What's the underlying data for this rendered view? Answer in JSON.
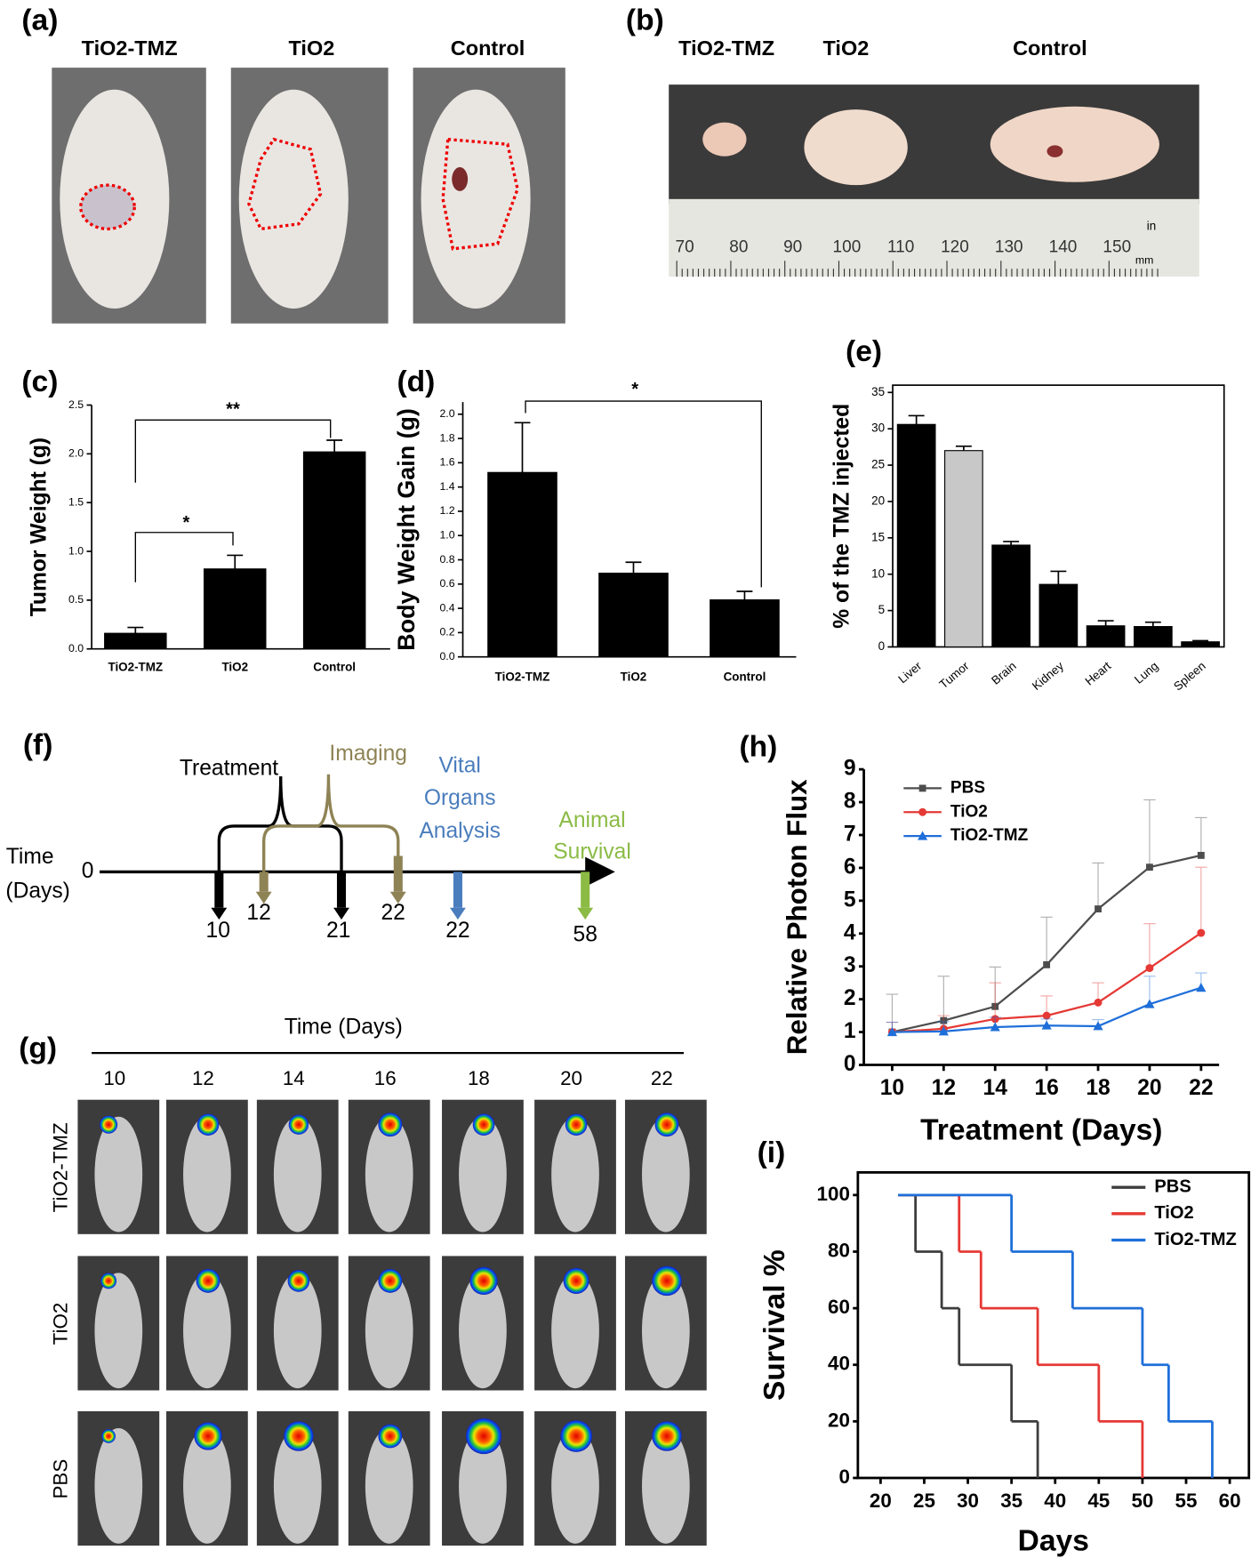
{
  "figure": {
    "a": {
      "label": "(a)",
      "groups": [
        "TiO2-TMZ",
        "TiO2",
        "Control"
      ]
    },
    "b": {
      "label": "(b)",
      "groups": [
        "TiO2-TMZ",
        "TiO2",
        "Control"
      ],
      "ruler_mm": [
        70,
        80,
        90,
        100,
        110,
        120,
        130,
        140,
        150
      ],
      "ruler_units": [
        "in",
        "mm"
      ]
    },
    "f": {
      "label": "(f)",
      "axis_label": [
        "Time",
        "(Days)"
      ],
      "origin": "0",
      "treatment": "Treatment",
      "imaging": "Imaging",
      "organs": [
        "Vital",
        "Organs",
        "Analysis"
      ],
      "survival": [
        "Animal",
        "Survival"
      ],
      "days": [
        10,
        12,
        21,
        22,
        22,
        58
      ]
    },
    "g": {
      "label": "(g)",
      "title": "Time (Days)",
      "days": [
        10,
        12,
        14,
        16,
        18,
        20,
        22
      ],
      "rows": [
        "TiO2-TMZ",
        "TiO2",
        "PBS"
      ]
    }
  },
  "chart_data": [
    {
      "type": "bar",
      "panel_label": "(c)",
      "ylabel": "Tumor Weight (g)",
      "categories": [
        "TiO2-TMZ",
        "TiO2",
        "Control"
      ],
      "values": [
        0.16,
        0.82,
        2.02
      ],
      "errors": [
        0.06,
        0.14,
        0.12
      ],
      "color": "#000000",
      "ylim": [
        0,
        2.5
      ],
      "yticks": [
        {
          "value": 0,
          "label": "0.0"
        },
        0.5,
        {
          "value": 1,
          "label": "1.0"
        },
        1.5,
        {
          "value": 2,
          "label": "2.0"
        },
        2.5
      ],
      "annotations": [
        "**",
        "*"
      ]
    },
    {
      "type": "bar",
      "panel_label": "(d)",
      "ylabel": "Body Weight Gain (g)",
      "categories": [
        "TiO2-TMZ",
        "TiO2",
        "Control"
      ],
      "values": [
        1.52,
        0.69,
        0.47
      ],
      "errors": [
        0.41,
        0.09,
        0.07
      ],
      "color": "#000000",
      "ylim": [
        0,
        2.1
      ],
      "yticks": [
        {
          "value": 0,
          "label": "0.0"
        },
        0.2,
        0.4,
        0.6,
        0.8,
        {
          "value": 1,
          "label": "1.0"
        },
        1.2,
        1.4,
        1.6,
        1.8,
        {
          "value": 2,
          "label": "2.0"
        }
      ],
      "annotations": [
        "*"
      ]
    },
    {
      "type": "bar",
      "panel_label": "(e)",
      "ylabel": "% of the TMZ injected",
      "categories": [
        "Liver",
        "Tumor",
        "Brain",
        "Kidney",
        "Heart",
        "Lung",
        "Spleen"
      ],
      "values": [
        30.6,
        27,
        14,
        8.6,
        2.9,
        2.8,
        0.7
      ],
      "errors": [
        1.2,
        0.6,
        0.5,
        1.8,
        0.7,
        0.6,
        0.15
      ],
      "colors": [
        "#000000",
        "#c8c8c8",
        "#000000",
        "#000000",
        "#000000",
        "#000000",
        "#000000"
      ],
      "ylim": [
        0,
        36
      ],
      "yticks": [
        0,
        5,
        10,
        15,
        20,
        25,
        30,
        35
      ],
      "frame": true
    },
    {
      "type": "line",
      "panel_label": "(h)",
      "xlabel": "Treatment (Days)",
      "ylabel": "Relative Photon Flux",
      "x": [
        10,
        12,
        14,
        16,
        18,
        20,
        22
      ],
      "xlim": [
        8.9,
        22.7
      ],
      "xticks": [
        10,
        12,
        14,
        16,
        18,
        20,
        22
      ],
      "ylim": [
        0,
        9
      ],
      "yticks": [
        0,
        1,
        2,
        3,
        4,
        5,
        6,
        7,
        8,
        9
      ],
      "series": [
        {
          "name": "PBS",
          "color": "#4d4d4d",
          "marker": "square",
          "values": [
            1,
            1.35,
            1.78,
            3.05,
            4.75,
            6.02,
            6.38
          ],
          "errors": [
            1.15,
            1.35,
            1.2,
            1.45,
            1.4,
            2.05,
            1.15
          ]
        },
        {
          "name": "TiO2",
          "color": "#e53935",
          "marker": "circle",
          "values": [
            1,
            1.1,
            1.4,
            1.5,
            1.9,
            2.95,
            4.02
          ],
          "errors": [
            0.3,
            0.4,
            1.1,
            0.6,
            0.6,
            1.35,
            2
          ]
        },
        {
          "name": "TiO2-TMZ",
          "color": "#1e6fd9",
          "marker": "triangle",
          "values": [
            1,
            1.02,
            1.15,
            1.2,
            1.18,
            1.85,
            2.35
          ],
          "errors": [
            0.3,
            0.3,
            0.3,
            0.2,
            0.2,
            0.85,
            0.45
          ]
        }
      ]
    },
    {
      "type": "step",
      "panel_label": "(i)",
      "xlabel": "Days",
      "ylabel": "Survival %",
      "xlim": [
        17.4,
        62.2
      ],
      "xticks": [
        20,
        25,
        30,
        35,
        40,
        45,
        50,
        55,
        60
      ],
      "ylim": [
        0,
        108
      ],
      "yticks": [
        0,
        20,
        40,
        60,
        80,
        100
      ],
      "series": [
        {
          "name": "PBS",
          "color": "#3d3d3d",
          "x": [
            22,
            24,
            27,
            29,
            35,
            38
          ],
          "values": [
            100,
            80,
            60,
            40,
            20,
            0
          ]
        },
        {
          "name": "TiO2",
          "color": "#e53935",
          "x": [
            22,
            29,
            31.5,
            38,
            45,
            50
          ],
          "values": [
            100,
            80,
            60,
            40,
            20,
            0
          ]
        },
        {
          "name": "TiO2-TMZ",
          "color": "#1e6fd9",
          "x": [
            22,
            35,
            42,
            50,
            53,
            58
          ],
          "values": [
            100,
            80,
            60,
            40,
            20,
            0
          ]
        }
      ]
    }
  ]
}
